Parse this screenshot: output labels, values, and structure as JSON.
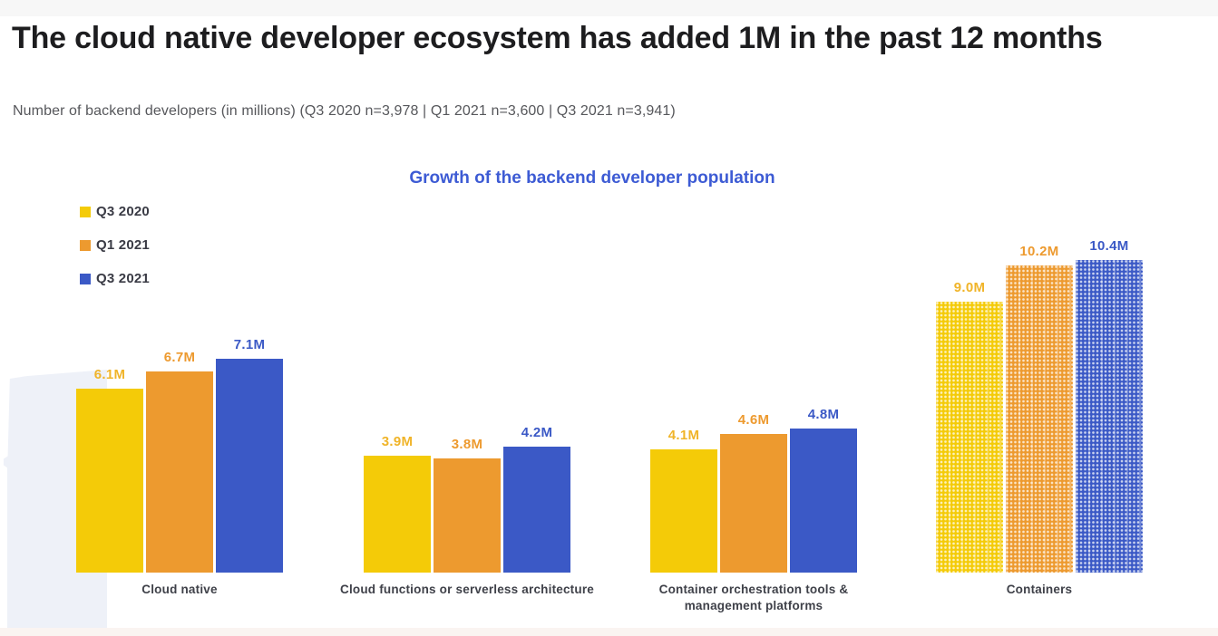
{
  "header": {
    "title": "The cloud native developer ecosystem has added 1M in the past 12 months",
    "subtitle": "Number of backend developers (in millions) (Q3 2020 n=3,978 | Q1 2021 n=3,600 | Q3 2021 n=3,941)"
  },
  "chart_data": {
    "type": "bar",
    "title": "Growth of the backend developer population",
    "title_color": "#3d5bd4",
    "categories": [
      "Cloud native",
      "Cloud functions or serverless architecture",
      "Container orchestration tools & management platforms",
      "Containers"
    ],
    "category_label_lines": [
      [
        "Cloud native"
      ],
      [
        "Cloud functions or serverless architecture"
      ],
      [
        "Container orchestration tools &",
        "management platforms"
      ],
      [
        "Containers"
      ]
    ],
    "series": [
      {
        "name": "Q3 2020",
        "color": "#f4cb08",
        "label_color": "#f0b429",
        "values": [
          6.1,
          3.9,
          4.1,
          9.0
        ]
      },
      {
        "name": "Q1 2021",
        "color": "#ed9a2f",
        "label_color": "#ed9a2f",
        "values": [
          6.7,
          3.8,
          4.6,
          10.2
        ]
      },
      {
        "name": "Q3 2021",
        "color": "#3b59c6",
        "label_color": "#3b59c6",
        "values": [
          7.1,
          4.2,
          4.8,
          10.4
        ]
      }
    ],
    "unit": "M",
    "value_labels": [
      [
        "6.1M",
        "3.9M",
        "4.1M",
        "9.0M"
      ],
      [
        "6.7M",
        "3.8M",
        "4.6M",
        "10.2M"
      ],
      [
        "7.1M",
        "4.2M",
        "4.8M",
        "10.4M"
      ]
    ],
    "textured_categories": [
      "Containers"
    ],
    "ylim": [
      0,
      11
    ],
    "grid": false,
    "legend_position": "top-left"
  }
}
